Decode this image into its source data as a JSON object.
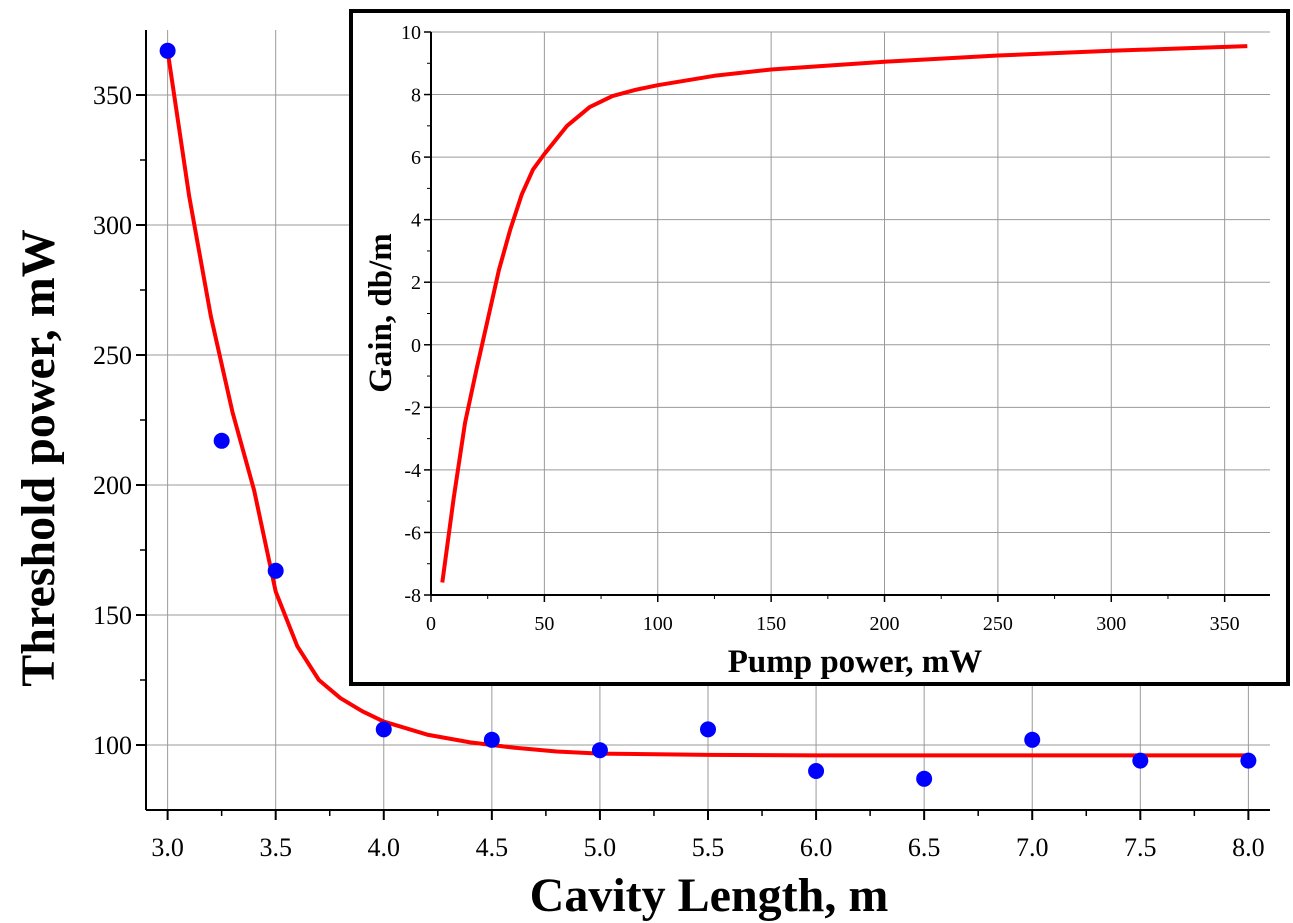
{
  "chart_data": [
    {
      "type": "scatter",
      "xlabel": "Cavity Length, m",
      "ylabel": "Threshold power, mW",
      "xlim": [
        2.9,
        8.1
      ],
      "ylim": [
        75,
        375
      ],
      "xticks": [
        "3.0",
        "3.5",
        "4.0",
        "4.5",
        "5.0",
        "5.5",
        "6.0",
        "6.5",
        "7.0",
        "7.5",
        "8.0"
      ],
      "yticks": [
        "100",
        "150",
        "200",
        "250",
        "300",
        "350"
      ],
      "grid": true,
      "series": [
        {
          "kind": "points",
          "color": "#0000ff",
          "x": [
            3.0,
            3.25,
            3.5,
            4.0,
            4.5,
            5.0,
            5.5,
            6.0,
            6.5,
            7.0,
            7.5,
            8.0
          ],
          "y": [
            367,
            217,
            167,
            106,
            102,
            98,
            106,
            90,
            87,
            102,
            94,
            94
          ]
        },
        {
          "kind": "line",
          "color": "#ff0000",
          "x": [
            3.0,
            3.1,
            3.2,
            3.3,
            3.4,
            3.5,
            3.6,
            3.7,
            3.8,
            3.9,
            4.0,
            4.2,
            4.4,
            4.6,
            4.8,
            5.0,
            5.5,
            6.0,
            7.0,
            8.0
          ],
          "y": [
            367,
            311,
            265,
            228,
            198,
            159,
            138,
            125,
            118,
            113,
            109,
            104,
            101,
            99,
            97.5,
            96.7,
            96.2,
            96,
            96,
            96
          ]
        }
      ]
    },
    {
      "type": "line",
      "placement": "inset",
      "xlabel": "Pump power, mW",
      "ylabel": "Gain, db/m",
      "xlim": [
        0,
        370
      ],
      "ylim": [
        -8,
        10
      ],
      "xticks": [
        "0",
        "50",
        "100",
        "150",
        "200",
        "250",
        "300",
        "350"
      ],
      "yticks": [
        "-8",
        "-6",
        "-4",
        "-2",
        "0",
        "2",
        "4",
        "6",
        "8",
        "10"
      ],
      "grid": true,
      "series": [
        {
          "color": "#ff0000",
          "x": [
            5,
            10,
            15,
            20,
            25,
            30,
            35,
            40,
            45,
            50,
            60,
            70,
            80,
            90,
            100,
            125,
            150,
            200,
            250,
            300,
            360
          ],
          "y": [
            -7.6,
            -4.9,
            -2.5,
            -0.8,
            0.8,
            2.4,
            3.7,
            4.8,
            5.6,
            6.1,
            7.0,
            7.6,
            7.95,
            8.15,
            8.3,
            8.6,
            8.8,
            9.05,
            9.25,
            9.4,
            9.55
          ]
        }
      ]
    }
  ]
}
